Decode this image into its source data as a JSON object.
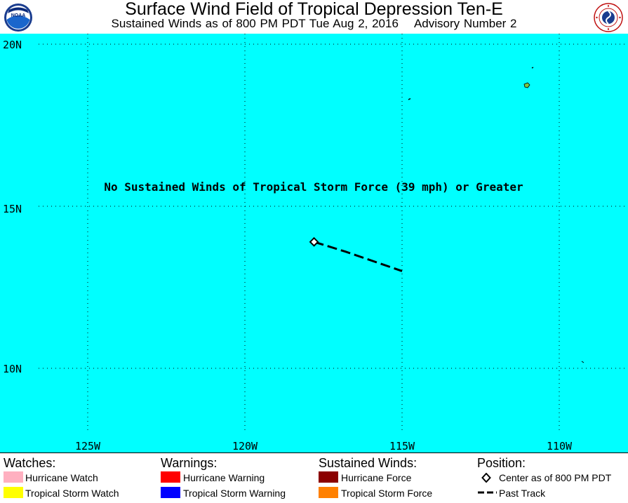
{
  "header": {
    "title": "Surface Wind Field of Tropical Depression Ten-E",
    "subtitle_time": "Sustained Winds as of 800 PM PDT Tue Aug 2, 2016",
    "subtitle_advisory": "Advisory Number 2",
    "left_logo_text": "NOAA",
    "left_logo_icon": "noaa-logo-icon",
    "right_logo_icon": "national-weather-service-logo-icon"
  },
  "map": {
    "ocean_color": "#00ffff",
    "grid": true,
    "latitude_labels": [
      "20N",
      "15N",
      "10N"
    ],
    "longitude_labels": [
      "125W",
      "120W",
      "115W",
      "110W"
    ],
    "message": "No Sustained Winds of Tropical Storm Force (39 mph) or Greater",
    "current_center": {
      "lat": 13.9,
      "lon": 117.8
    },
    "past_track": [
      {
        "lat": 13.9,
        "lon": 117.8
      },
      {
        "lat": 13.6,
        "lon": 116.8
      },
      {
        "lat": 13.0,
        "lon": 115.0
      }
    ]
  },
  "legend": {
    "watches": {
      "heading": "Watches:",
      "items": [
        {
          "label": "Hurricane Watch",
          "color": "#ffb0c0"
        },
        {
          "label": "Tropical Storm Watch",
          "color": "#ffff00"
        }
      ]
    },
    "warnings": {
      "heading": "Warnings:",
      "items": [
        {
          "label": "Hurricane Warning",
          "color": "#ff0000"
        },
        {
          "label": "Tropical Storm Warning",
          "color": "#0000ff"
        }
      ]
    },
    "winds": {
      "heading": "Sustained Winds:",
      "items": [
        {
          "label": "Hurricane Force",
          "color": "#8b0000"
        },
        {
          "label": "Tropical Storm Force",
          "color": "#ff8000"
        }
      ]
    },
    "position": {
      "heading": "Position:",
      "center_label": "Center as of 800 PM PDT",
      "track_label": "Past Track"
    }
  }
}
